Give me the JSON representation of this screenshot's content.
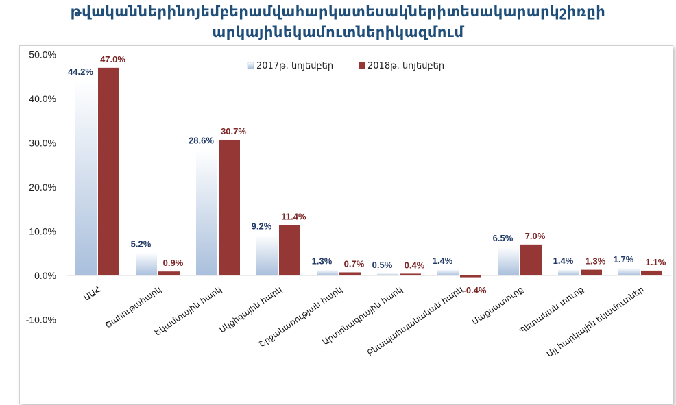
{
  "title": {
    "line1": "թվականներինոյեմբերամվահարկատեսակներիտեսակարարկշիռըի",
    "line2": "արկայինեկամուտներիկազմում"
  },
  "colors": {
    "series_2017": "#c9d7ea",
    "series_2017_dark": "#9fb6d6",
    "series_2018": "#953735",
    "title": "#1f4e79"
  },
  "chart_data": {
    "type": "bar",
    "categories": [
      "ԱԱՀ",
      "Շահութահարկ",
      "Եկամտային հարկ",
      "Ակցիզային հարկ",
      "Շրջանառության հարկ",
      "Արտոնագրային հարկ",
      "Բնապահպանական հարկ",
      "Մաքսատուրք",
      "Պետական տուրք",
      "Այլ հարկային եկամուտներ"
    ],
    "series": [
      {
        "name": "2017թ. նոյեմբեր",
        "values": [
          44.2,
          5.2,
          28.6,
          9.2,
          1.3,
          0.5,
          1.4,
          6.5,
          1.4,
          1.7
        ]
      },
      {
        "name": "2018թ. նոյեմբեր",
        "values": [
          47.0,
          0.9,
          30.7,
          11.4,
          0.7,
          0.4,
          -0.4,
          7.0,
          1.3,
          1.1
        ]
      }
    ],
    "data_labels": {
      "2017": [
        "44.2%",
        "5.2%",
        "28.6%",
        "9.2%",
        "1.3%",
        "0.5%",
        "1.4%",
        "6.5%",
        "1.4%",
        "1.7%"
      ],
      "2018": [
        "47.0%",
        "0.9%",
        "30.7%",
        "11.4%",
        "0.7%",
        "0.4%",
        "-0.4%",
        "7.0%",
        "1.3%",
        "1.1%"
      ]
    },
    "y_ticks": [
      "-10.0%",
      "0.0%",
      "10.0%",
      "20.0%",
      "30.0%",
      "40.0%",
      "50.0%"
    ],
    "y_tick_values": [
      -10,
      0,
      10,
      20,
      30,
      40,
      50
    ],
    "ylim": [
      -10,
      50
    ],
    "legend_position": "top-center",
    "grid": false
  }
}
